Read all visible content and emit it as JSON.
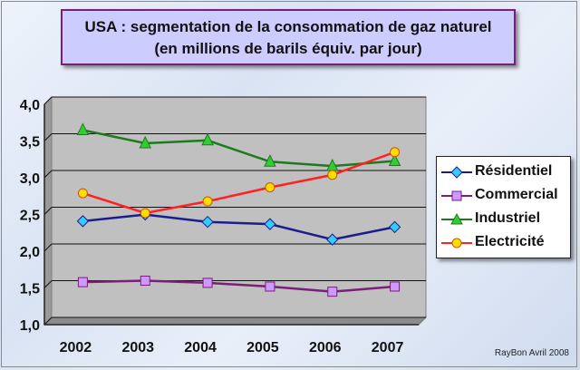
{
  "chart_data": {
    "type": "line",
    "title": "USA : segmentation de la consommation de gaz naturel",
    "subtitle": "(en millions de barils équiv. par jour)",
    "categories": [
      "2002",
      "2003",
      "2004",
      "2005",
      "2006",
      "2007"
    ],
    "y_ticks": [
      "1,0",
      "1,5",
      "2,0",
      "2,5",
      "3,0",
      "3,5",
      "4,0"
    ],
    "ylim": [
      1.0,
      4.0
    ],
    "grid": true,
    "legend_position": "right",
    "series": [
      {
        "name": "Résidentiel",
        "color": "#1c1c8c",
        "marker": "diamond",
        "marker_color": "#33ccff",
        "values": [
          2.31,
          2.4,
          2.3,
          2.27,
          2.06,
          2.23
        ]
      },
      {
        "name": "Commercial",
        "color": "#7a1e78",
        "marker": "square",
        "marker_color": "#cc99ff",
        "values": [
          1.48,
          1.5,
          1.47,
          1.42,
          1.35,
          1.42
        ]
      },
      {
        "name": "Industriel",
        "color": "#1f7a1f",
        "marker": "triangle",
        "marker_color": "#33cc33",
        "values": [
          3.55,
          3.37,
          3.41,
          3.12,
          3.06,
          3.13
        ]
      },
      {
        "name": "Electricité",
        "color": "#ff2020",
        "marker": "circle",
        "marker_color": "#ffdd00",
        "values": [
          2.69,
          2.42,
          2.58,
          2.77,
          2.94,
          3.25
        ]
      }
    ],
    "plot_background": "#c0c0c0"
  },
  "credit": "RayBon Avril 2008"
}
